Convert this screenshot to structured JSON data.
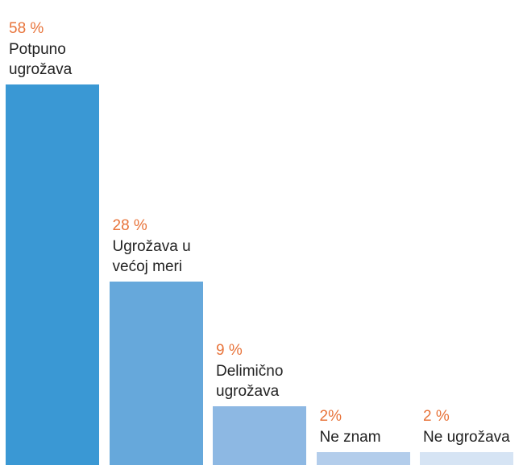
{
  "chart_data": {
    "type": "bar",
    "categories": [
      "Potpuno\nugrožava",
      "Ugrožava u\nvećoj meri",
      "Delimično\nugrožava",
      "Ne znam",
      "Ne ugrožava"
    ],
    "values": [
      58,
      28,
      9,
      2,
      2
    ],
    "value_labels": [
      "58 %",
      "28 %",
      "9 %",
      "2%",
      "2 %"
    ],
    "colors": [
      "#3a98d4",
      "#66a8db",
      "#8db8e3",
      "#b3cdeb",
      "#d6e4f4"
    ],
    "label_color": "#e8743b"
  }
}
